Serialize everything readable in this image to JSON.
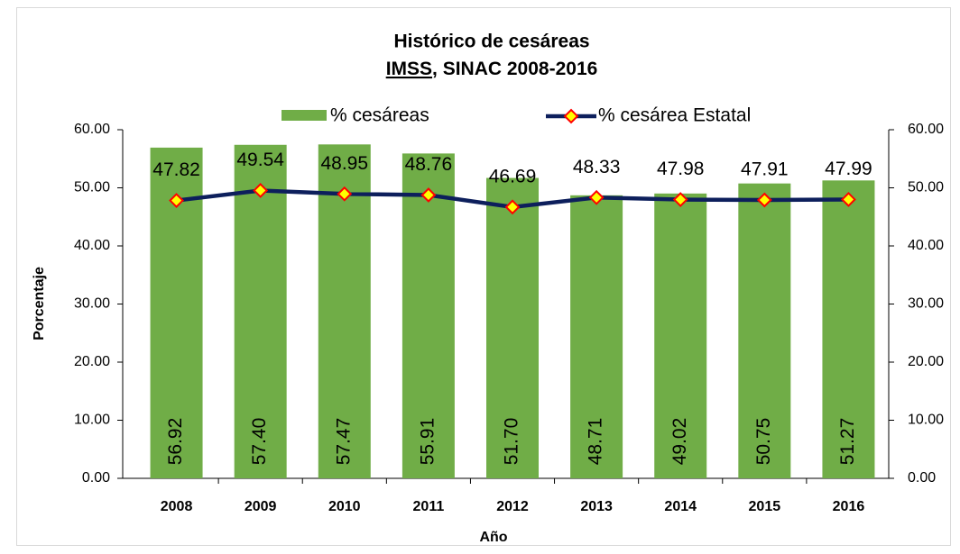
{
  "chart_data": {
    "type": "bar_line",
    "title": "Histórico de cesáreas",
    "subtitle": [
      "IMSS",
      ", SINAC 2008-2016"
    ],
    "x_label": "Año",
    "y_label": "Porcentaje",
    "categories": [
      "2008",
      "2009",
      "2010",
      "2011",
      "2012",
      "2013",
      "2014",
      "2015",
      "2016"
    ],
    "series": [
      {
        "name": "% cesáreas",
        "color": "#70ad47",
        "kind": "bar",
        "values": [
          56.92,
          57.4,
          57.47,
          55.91,
          51.7,
          48.71,
          49.02,
          50.75,
          51.27
        ],
        "value_labels": [
          "56.92",
          "57.40",
          "57.47",
          "55.91",
          "51.70",
          "48.71",
          "49.02",
          "50.75",
          "51.27"
        ]
      },
      {
        "name": "% cesárea Estatal",
        "color": "#0d1f5c",
        "kind": "line",
        "axis": "y2",
        "values": [
          47.82,
          49.54,
          48.95,
          48.76,
          46.69,
          48.33,
          47.98,
          47.91,
          47.99
        ],
        "value_labels": [
          "47.82",
          "49.54",
          "48.95",
          "48.76",
          "46.69",
          "48.33",
          "47.98",
          "47.91",
          "47.99"
        ]
      }
    ],
    "ylim": [
      0,
      60
    ],
    "yticks": [
      {
        "value": 0,
        "label": "0.00"
      },
      {
        "value": 10,
        "label": "10.00"
      },
      {
        "value": 20,
        "label": "20.00"
      },
      {
        "value": 30,
        "label": "30.00"
      },
      {
        "value": 40,
        "label": "40.00"
      },
      {
        "value": 50,
        "label": "50.00"
      },
      {
        "value": 60,
        "label": "60.00"
      }
    ],
    "y2lim": [
      0,
      60
    ],
    "y2ticks": [
      {
        "value": 0,
        "label": "0.00"
      },
      {
        "value": 10,
        "label": "10.00"
      },
      {
        "value": 20,
        "label": "20.00"
      },
      {
        "value": 30,
        "label": "30.00"
      },
      {
        "value": 40,
        "label": "40.00"
      },
      {
        "value": 50,
        "label": "50.00"
      },
      {
        "value": 60,
        "label": "60.00"
      }
    ],
    "legend": "top",
    "grid": false
  }
}
